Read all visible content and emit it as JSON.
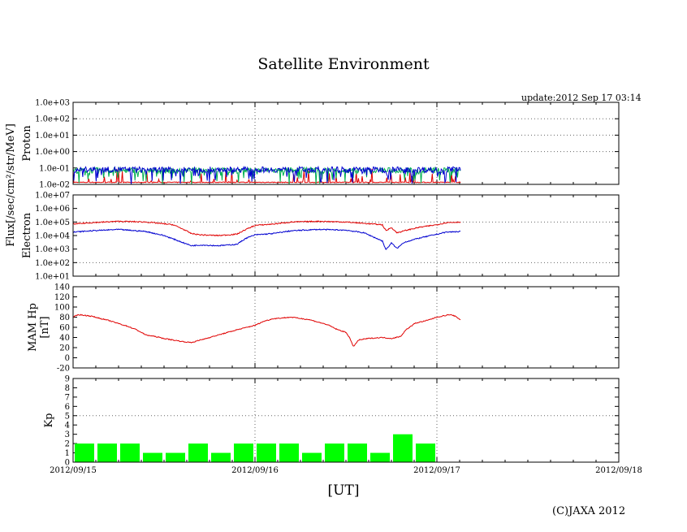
{
  "title": "Satellite Environment",
  "update_text": "update:2012 Sep 17 03:14",
  "xaxis_label": "[UT]",
  "copyright": "(C)JAXA 2012",
  "flux_label": "Flux[/sec/cm²/str/MeV]",
  "colors": {
    "red": "#e00000",
    "blue": "#0000d0",
    "green": "#00b050",
    "bar": "#00ff00",
    "grid": "#666666"
  },
  "chart_data": {
    "type": "line",
    "x_tick_labels": [
      "2012/09/15",
      "2012/09/16",
      "2012/09/17",
      "2012/09/18"
    ],
    "x_range_days": [
      0,
      3
    ],
    "data_end_day": 2.13,
    "panels": [
      {
        "name": "proton",
        "type": "line",
        "ylabel": "Proton",
        "yscale": "log",
        "ylim_exp": [
          -2,
          3
        ],
        "tick_labels": [
          "1.0e-02",
          "1.0e-01",
          "1.0e+00",
          "1.0e+01",
          "1.0e+02",
          "1.0e+03"
        ],
        "series": [
          {
            "name": "proton-high",
            "color": "red",
            "level_exp": -1.9
          },
          {
            "name": "proton-mid",
            "color": "green",
            "level_exp": -1.15
          },
          {
            "name": "proton-low",
            "color": "blue",
            "level_exp": -1.1
          }
        ]
      },
      {
        "name": "electron",
        "type": "line",
        "ylabel": "Electron",
        "yscale": "log",
        "ylim_exp": [
          1,
          7
        ],
        "tick_labels": [
          "1.0e+01",
          "1.0e+02",
          "1.0e+03",
          "1.0e+04",
          "1.0e+05",
          "1.0e+06",
          "1.0e+07"
        ],
        "series": [
          {
            "name": "electron-low-energy",
            "color": "red",
            "points": [
              [
                0,
                4.85
              ],
              [
                0.1,
                4.95
              ],
              [
                0.25,
                5.05
              ],
              [
                0.4,
                5.0
              ],
              [
                0.55,
                4.8
              ],
              [
                0.6,
                4.5
              ],
              [
                0.65,
                4.15
              ],
              [
                0.7,
                4.05
              ],
              [
                0.8,
                4.0
              ],
              [
                0.9,
                4.1
              ],
              [
                0.95,
                4.45
              ],
              [
                1.0,
                4.75
              ],
              [
                1.1,
                4.85
              ],
              [
                1.2,
                5.0
              ],
              [
                1.35,
                5.05
              ],
              [
                1.5,
                5.0
              ],
              [
                1.65,
                4.85
              ],
              [
                1.7,
                4.8
              ],
              [
                1.72,
                4.35
              ],
              [
                1.75,
                4.6
              ],
              [
                1.78,
                4.2
              ],
              [
                1.82,
                4.35
              ],
              [
                1.9,
                4.6
              ],
              [
                2.0,
                4.8
              ],
              [
                2.05,
                4.95
              ],
              [
                2.13,
                5.0
              ]
            ]
          },
          {
            "name": "electron-high-energy",
            "color": "blue",
            "points": [
              [
                0,
                4.25
              ],
              [
                0.1,
                4.35
              ],
              [
                0.25,
                4.45
              ],
              [
                0.4,
                4.3
              ],
              [
                0.5,
                4.0
              ],
              [
                0.6,
                3.5
              ],
              [
                0.65,
                3.25
              ],
              [
                0.7,
                3.3
              ],
              [
                0.8,
                3.25
              ],
              [
                0.9,
                3.35
              ],
              [
                0.95,
                3.8
              ],
              [
                1.0,
                4.05
              ],
              [
                1.1,
                4.15
              ],
              [
                1.2,
                4.35
              ],
              [
                1.35,
                4.45
              ],
              [
                1.5,
                4.4
              ],
              [
                1.6,
                4.2
              ],
              [
                1.65,
                3.9
              ],
              [
                1.7,
                3.6
              ],
              [
                1.72,
                2.95
              ],
              [
                1.75,
                3.45
              ],
              [
                1.78,
                3.05
              ],
              [
                1.82,
                3.5
              ],
              [
                1.9,
                3.8
              ],
              [
                2.0,
                4.1
              ],
              [
                2.05,
                4.25
              ],
              [
                2.13,
                4.3
              ]
            ]
          }
        ]
      },
      {
        "name": "magnetic",
        "type": "line",
        "ylabel": "MAM Hp",
        "ylabel2": "[nT]",
        "yscale": "linear",
        "ylim": [
          -20,
          140
        ],
        "tick_labels": [
          "-20",
          "0",
          "20",
          "40",
          "60",
          "80",
          "100",
          "120",
          "140"
        ],
        "series": [
          {
            "name": "hp",
            "color": "red",
            "points": [
              [
                0,
                80
              ],
              [
                0.03,
                85
              ],
              [
                0.1,
                82
              ],
              [
                0.2,
                73
              ],
              [
                0.3,
                62
              ],
              [
                0.35,
                55
              ],
              [
                0.4,
                45
              ],
              [
                0.45,
                42
              ],
              [
                0.5,
                38
              ],
              [
                0.55,
                35
              ],
              [
                0.6,
                32
              ],
              [
                0.65,
                30
              ],
              [
                0.7,
                35
              ],
              [
                0.8,
                45
              ],
              [
                0.9,
                55
              ],
              [
                1.0,
                64
              ],
              [
                1.05,
                72
              ],
              [
                1.1,
                77
              ],
              [
                1.2,
                80
              ],
              [
                1.3,
                75
              ],
              [
                1.4,
                65
              ],
              [
                1.45,
                56
              ],
              [
                1.5,
                50
              ],
              [
                1.52,
                40
              ],
              [
                1.54,
                22
              ],
              [
                1.57,
                35
              ],
              [
                1.62,
                38
              ],
              [
                1.7,
                40
              ],
              [
                1.75,
                38
              ],
              [
                1.8,
                42
              ],
              [
                1.83,
                55
              ],
              [
                1.88,
                68
              ],
              [
                1.95,
                74
              ],
              [
                2.0,
                80
              ],
              [
                2.07,
                85
              ],
              [
                2.1,
                82
              ],
              [
                2.13,
                75
              ]
            ]
          }
        ]
      },
      {
        "name": "kp",
        "type": "bar",
        "ylabel": "Kp",
        "ylim": [
          0,
          9
        ],
        "tick_labels": [
          "0",
          "1",
          "2",
          "3",
          "4",
          "5",
          "6",
          "7",
          "8",
          "9"
        ],
        "bar_interval_hours": 3,
        "values": [
          2,
          2,
          2,
          1,
          1,
          2,
          1,
          2,
          2,
          2,
          1,
          2,
          2,
          1,
          3,
          2
        ]
      }
    ]
  }
}
